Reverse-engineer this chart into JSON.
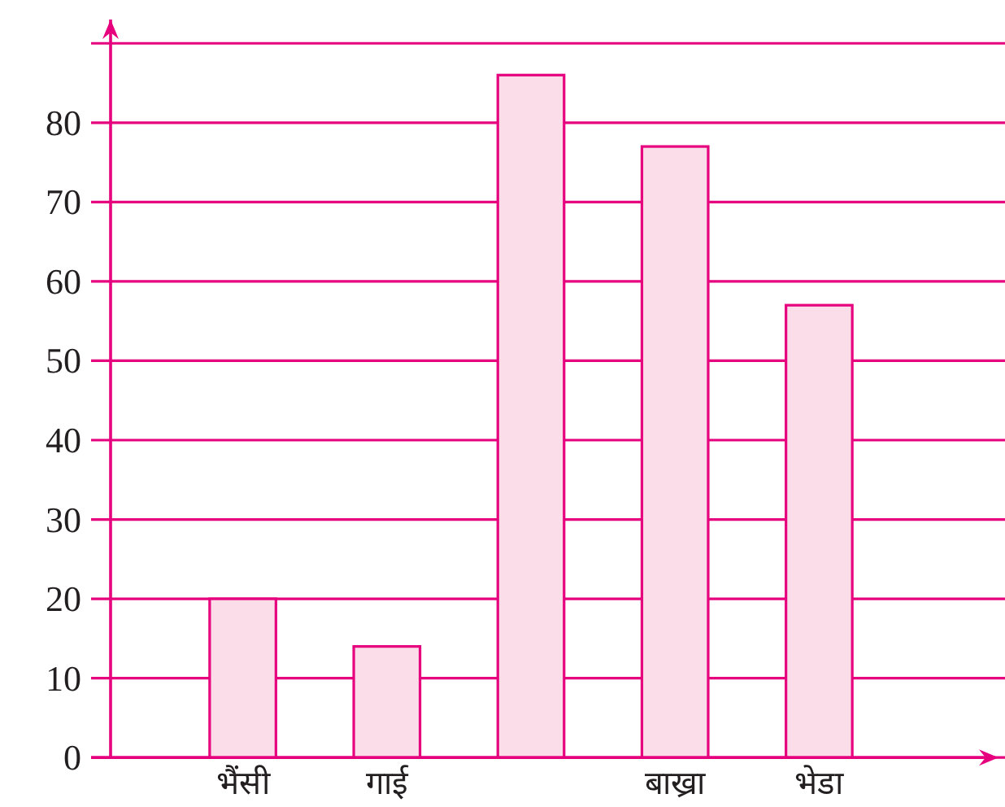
{
  "chart_data": {
    "type": "bar",
    "categories": [
      "भैंसी",
      "गाई",
      null,
      "बाख्रा",
      "भेडा"
    ],
    "values": [
      20,
      14,
      86,
      77,
      57
    ],
    "color": "#fadde9",
    "ylim": [
      0,
      93
    ],
    "yticks": [
      0,
      10,
      20,
      30,
      40,
      50,
      60,
      70,
      80,
      {
        "value": 90,
        "label": null
      }
    ],
    "grid": "y"
  }
}
